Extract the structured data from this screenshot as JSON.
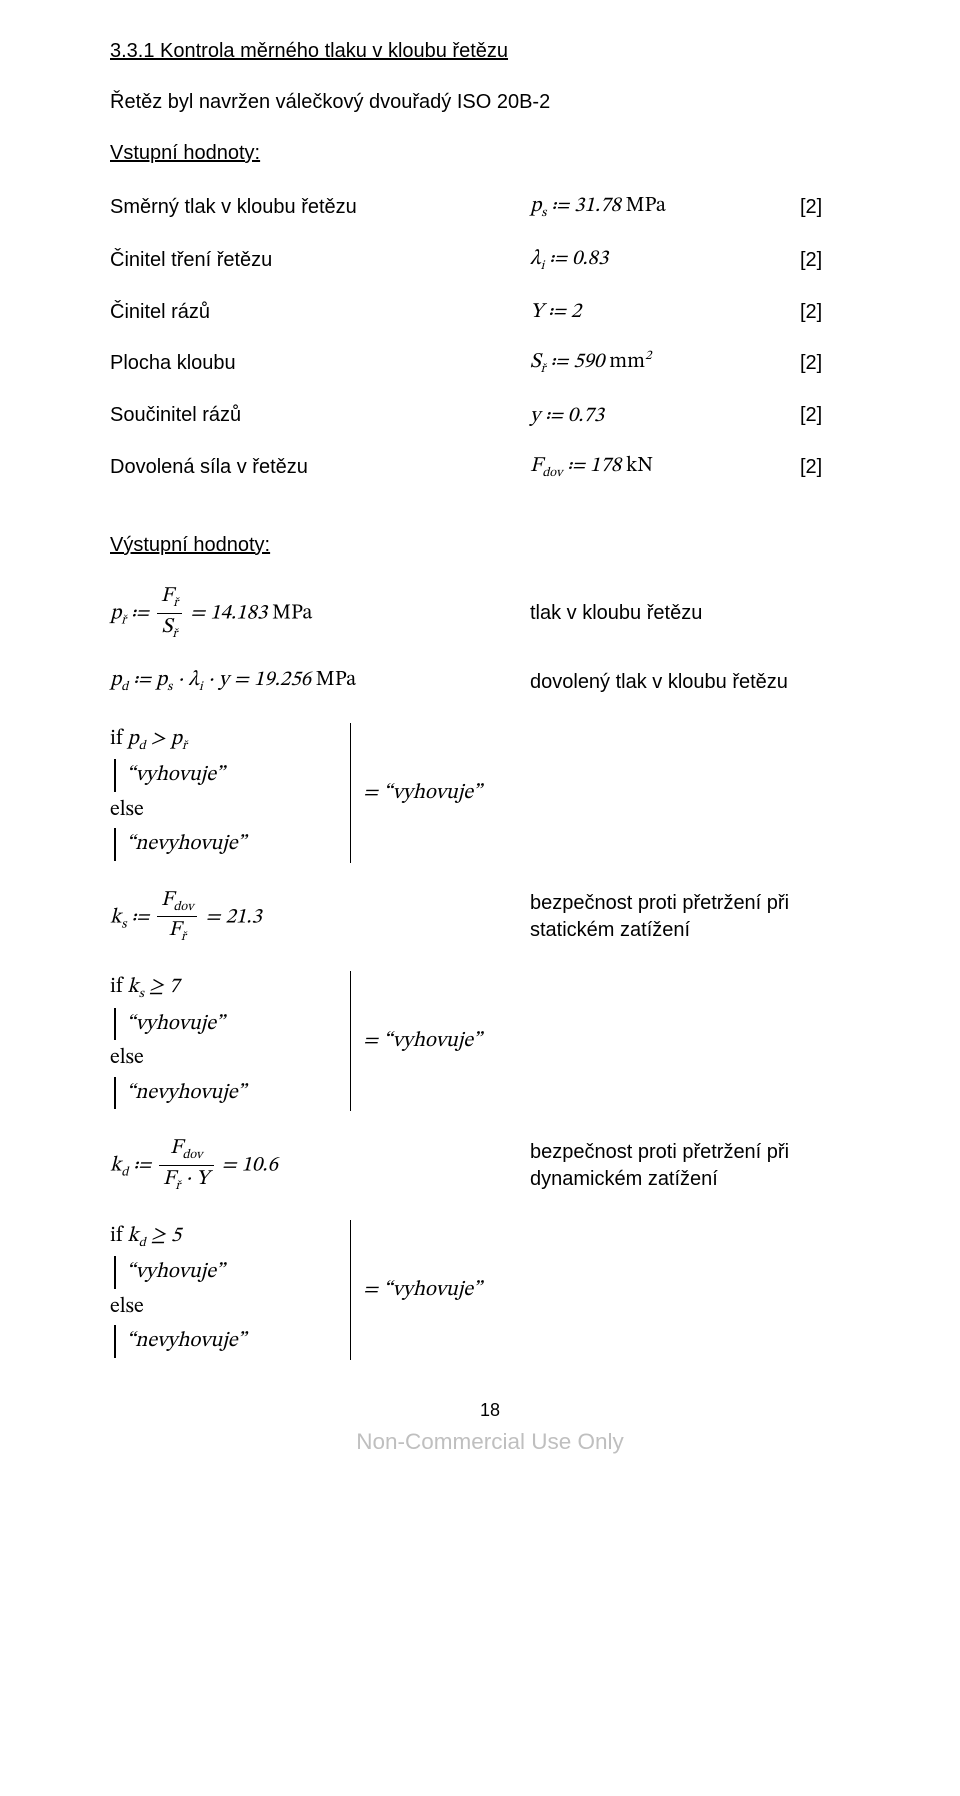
{
  "heading": "3.3.1 Kontrola měrného tlaku v kloubu řetězu",
  "intro": "Řetěz byl navržen válečkový dvouřadý ISO 20B-2",
  "input_label": "Vstupní hodnoty:",
  "inputs": [
    {
      "label": "Směrný tlak v kloubu řetězu",
      "expr": "p<sub>s</sub> ≔ 31.78 <span class='upright'>MPa</span>",
      "ref": "[2]"
    },
    {
      "label": "Činitel tření řetězu",
      "expr": "λ<sub>i</sub> ≔ 0.83",
      "ref": "[2]"
    },
    {
      "label": "Činitel rázů",
      "expr": "Y ≔ 2",
      "ref": "[2]"
    },
    {
      "label": "Plocha kloubu",
      "expr": "S<sub>ř</sub> ≔ 590 <span class='upright'>mm</span><sup>2</sup>",
      "ref": "[2]"
    },
    {
      "label": "Součinitel rázů",
      "expr": "y ≔ 0.73",
      "ref": "[2]"
    },
    {
      "label": "Dovolená síla v řetězu",
      "expr": "F<sub>dov</sub> ≔ 178 <span class='upright'>kN</span>",
      "ref": "[2]"
    }
  ],
  "output_label": "Výstupní hodnoty:",
  "out1": {
    "expr": "p<sub>ř</sub> ≔ <span class='frac'><span class='num'>F<sub>ř</sub></span><span class='den'>S<sub>ř</sub></span></span> = 14.183 <span class='upright'>MPa</span>",
    "desc": "tlak v kloubu řetězu"
  },
  "out2": {
    "expr": "p<sub>d</sub> ≔ p<sub>s</sub> ⋅ λ<sub>i</sub> ⋅ y = 19.256 <span class='upright'>MPa</span>",
    "desc": "dovolený tlak v kloubu řetězu"
  },
  "cond1": {
    "if_expr": "<span class='upright'>if</span> p<sub>d</sub> &gt; p<sub>ř</sub>",
    "yes": "“vyhovuje”",
    "else_kw": "<span class='upright'>else</span>",
    "no": "“nevyhovuje”",
    "result": "= “vyhovuje”"
  },
  "out3": {
    "expr": "k<sub>s</sub> ≔ <span class='frac'><span class='num'>F<sub>dov</sub></span><span class='den'>F<sub>ř</sub></span></span> = 21.3",
    "desc": "bezpečnost proti přetržení při statickém zatížení"
  },
  "cond2": {
    "if_expr": "<span class='upright'>if</span> k<sub>s</sub> ≥ 7",
    "yes": "“vyhovuje”",
    "else_kw": "<span class='upright'>else</span>",
    "no": "“nevyhovuje”",
    "result": "= “vyhovuje”"
  },
  "out4": {
    "expr": "k<sub>d</sub> ≔ <span class='frac'><span class='num'>F<sub>dov</sub></span><span class='den'>F<sub>ř</sub> ⋅ Y</span></span> = 10.6",
    "desc": "bezpečnost proti přetržení při dynamickém zatížení"
  },
  "cond3": {
    "if_expr": "<span class='upright'>if</span> k<sub>d</sub> ≥ 5",
    "yes": "“vyhovuje”",
    "else_kw": "<span class='upright'>else</span>",
    "no": "“nevyhovuje”",
    "result": "= “vyhovuje”"
  },
  "page_number": "18",
  "watermark": "Non-Commercial Use Only"
}
